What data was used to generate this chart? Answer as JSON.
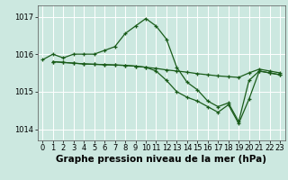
{
  "xlabel": "Graphe pression niveau de la mer (hPa)",
  "background_color": "#cce8e0",
  "plot_bg_color": "#cce8e0",
  "grid_color": "#ffffff",
  "line_color": "#1a5c1a",
  "xlim": [
    -0.5,
    23.5
  ],
  "ylim": [
    1013.7,
    1017.3
  ],
  "yticks": [
    1014,
    1015,
    1016,
    1017
  ],
  "xticks": [
    0,
    1,
    2,
    3,
    4,
    5,
    6,
    7,
    8,
    9,
    10,
    11,
    12,
    13,
    14,
    15,
    16,
    17,
    18,
    19,
    20,
    21,
    22,
    23
  ],
  "line1_x": [
    0,
    1,
    2,
    3,
    4,
    5,
    6,
    7,
    8,
    9,
    10,
    11,
    12,
    13,
    14,
    15,
    16,
    17,
    18,
    19,
    20,
    21,
    22,
    23
  ],
  "line1_y": [
    1015.85,
    1016.0,
    1015.9,
    1016.0,
    1016.0,
    1016.0,
    1016.1,
    1016.2,
    1016.55,
    1016.75,
    1016.95,
    1016.75,
    1016.4,
    1015.65,
    1015.25,
    1015.05,
    1014.75,
    1014.6,
    1014.7,
    1014.2,
    1015.3,
    1015.55,
    1015.5,
    1015.45
  ],
  "line2_x": [
    1,
    2,
    3,
    4,
    5,
    6,
    7,
    8,
    9,
    10,
    11,
    12,
    13,
    14,
    15,
    16,
    17,
    18,
    19,
    20,
    21,
    22,
    23
  ],
  "line2_y": [
    1015.8,
    1015.78,
    1015.76,
    1015.74,
    1015.73,
    1015.72,
    1015.71,
    1015.7,
    1015.68,
    1015.65,
    1015.62,
    1015.58,
    1015.55,
    1015.52,
    1015.48,
    1015.45,
    1015.42,
    1015.4,
    1015.38,
    1015.5,
    1015.6,
    1015.55,
    1015.5
  ],
  "line3_x": [
    1,
    2,
    3,
    4,
    5,
    6,
    7,
    8,
    9,
    10,
    11,
    12,
    13,
    14,
    15,
    16,
    17,
    18,
    19,
    20,
    21,
    22,
    23
  ],
  "line3_y": [
    1015.8,
    1015.78,
    1015.76,
    1015.74,
    1015.73,
    1015.72,
    1015.71,
    1015.7,
    1015.68,
    1015.65,
    1015.55,
    1015.3,
    1015.0,
    1014.85,
    1014.75,
    1014.6,
    1014.45,
    1014.65,
    1014.15,
    1014.8,
    1015.55,
    1015.5,
    1015.45
  ],
  "xlabel_fontsize": 7.5,
  "tick_fontsize": 6.0
}
